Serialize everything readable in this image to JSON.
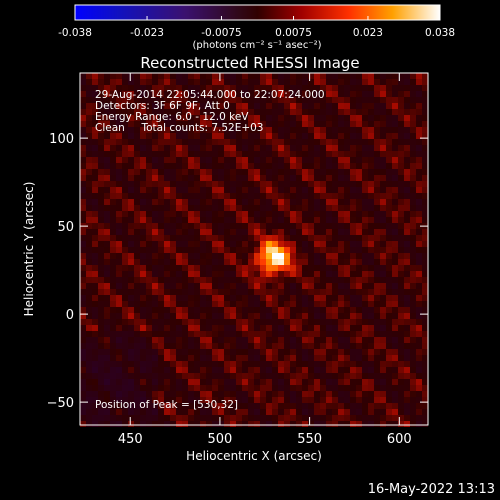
{
  "colorbar": {
    "tick_labels": [
      "-0.038",
      "-0.023",
      "-0.0075",
      "0.0075",
      "0.023",
      "0.038"
    ],
    "ticks": [
      -0.038,
      -0.023,
      -0.0075,
      0.0075,
      0.023,
      0.038
    ],
    "range": [
      -0.038,
      0.038
    ],
    "units_label": "(photons cm⁻² s⁻¹ asec⁻²)"
  },
  "chart_data": {
    "type": "heatmap",
    "title": "Reconstructed RHESSI Image",
    "xlabel": "Heliocentric X (arcsec)",
    "ylabel": "Heliocentric Y (arcsec)",
    "xlim": [
      422,
      616
    ],
    "ylim": [
      -63,
      137
    ],
    "x_ticks": [
      450,
      500,
      550,
      600
    ],
    "y_ticks": [
      -50,
      0,
      50,
      100
    ],
    "x_tick_labels": [
      "450",
      "500",
      "550",
      "600"
    ],
    "y_tick_labels": [
      "−50",
      "0",
      "50",
      "100"
    ],
    "peak": {
      "x": 530,
      "y": 32,
      "value": 0.038
    },
    "annotations": [
      "29-Aug-2014 22:05:44.000 to 22:07:24.000",
      "Detectors: 3F 6F 9F, Att 0",
      "Energy Range: 6.0 - 12.0 keV",
      "Clean     Total counts: 7.52E+03"
    ],
    "peak_label": "Position of Peak = [530,32]"
  },
  "footer": {
    "date": "16-May-2022 13:13"
  }
}
